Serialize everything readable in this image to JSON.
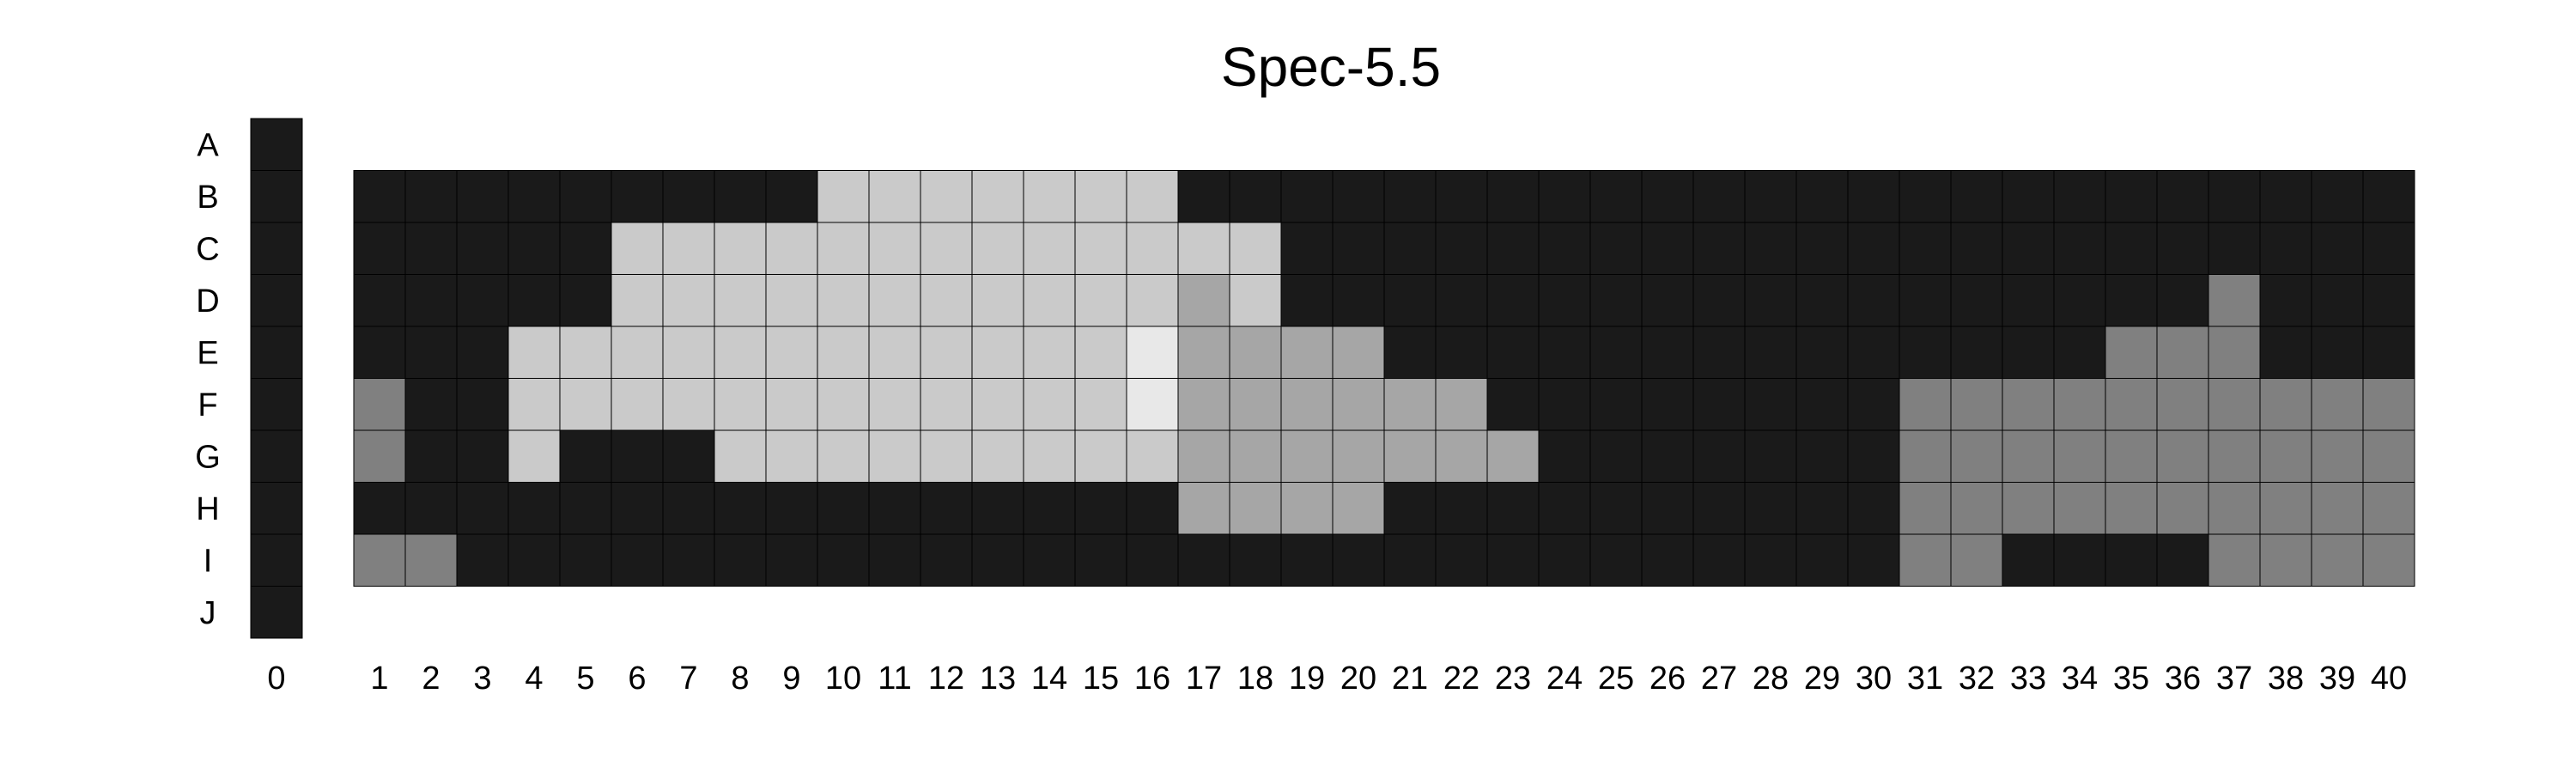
{
  "chart_data": {
    "type": "heatmap",
    "title": "Spec-5.5",
    "row_labels": [
      "A",
      "B",
      "C",
      "D",
      "E",
      "F",
      "G",
      "H",
      "I",
      "J"
    ],
    "index_column": {
      "label": "0",
      "rows": [
        "A",
        "B",
        "C",
        "D",
        "E",
        "F",
        "G",
        "H",
        "I",
        "J"
      ],
      "level": 0
    },
    "column_labels": [
      "1",
      "2",
      "3",
      "4",
      "5",
      "6",
      "7",
      "8",
      "9",
      "10",
      "11",
      "12",
      "13",
      "14",
      "15",
      "16",
      "17",
      "18",
      "19",
      "20",
      "21",
      "22",
      "23",
      "24",
      "25",
      "26",
      "27",
      "28",
      "29",
      "30",
      "31",
      "32",
      "33",
      "34",
      "35",
      "36",
      "37",
      "38",
      "39",
      "40"
    ],
    "grid_rows": [
      "B",
      "C",
      "D",
      "E",
      "F",
      "G",
      "H",
      "I"
    ],
    "levels": [
      [
        0,
        0,
        0,
        0,
        0,
        0,
        0,
        0,
        0,
        4,
        4,
        4,
        4,
        4,
        4,
        4,
        0,
        0,
        0,
        0,
        0,
        0,
        0,
        0,
        0,
        0,
        0,
        0,
        0,
        0,
        0,
        0,
        0,
        0,
        0,
        0,
        0,
        0,
        0,
        0
      ],
      [
        0,
        0,
        0,
        0,
        0,
        4,
        4,
        4,
        4,
        4,
        4,
        4,
        4,
        4,
        4,
        4,
        4,
        4,
        0,
        0,
        0,
        0,
        0,
        0,
        0,
        0,
        0,
        0,
        0,
        0,
        0,
        0,
        0,
        0,
        0,
        0,
        0,
        0,
        0,
        0
      ],
      [
        0,
        0,
        0,
        0,
        0,
        4,
        4,
        4,
        4,
        4,
        4,
        4,
        4,
        4,
        4,
        4,
        3,
        4,
        0,
        0,
        0,
        0,
        0,
        0,
        0,
        0,
        0,
        0,
        0,
        0,
        0,
        0,
        0,
        0,
        0,
        0,
        2,
        0,
        0,
        0
      ],
      [
        0,
        0,
        0,
        4,
        4,
        4,
        4,
        4,
        4,
        4,
        4,
        4,
        4,
        4,
        4,
        5,
        3,
        3,
        3,
        3,
        0,
        0,
        0,
        0,
        0,
        0,
        0,
        0,
        0,
        0,
        0,
        0,
        0,
        0,
        2,
        2,
        2,
        0,
        0,
        0
      ],
      [
        2,
        0,
        0,
        4,
        4,
        4,
        4,
        4,
        4,
        4,
        4,
        4,
        4,
        4,
        4,
        5,
        3,
        3,
        3,
        3,
        3,
        3,
        0,
        0,
        0,
        0,
        0,
        0,
        0,
        0,
        2,
        2,
        2,
        2,
        2,
        2,
        2,
        2,
        2,
        2
      ],
      [
        2,
        0,
        0,
        4,
        0,
        0,
        0,
        4,
        4,
        4,
        4,
        4,
        4,
        4,
        4,
        4,
        3,
        3,
        3,
        3,
        3,
        3,
        3,
        0,
        0,
        0,
        0,
        0,
        0,
        0,
        2,
        2,
        2,
        2,
        2,
        2,
        2,
        2,
        2,
        2
      ],
      [
        0,
        0,
        0,
        0,
        0,
        0,
        0,
        0,
        0,
        0,
        0,
        0,
        0,
        0,
        0,
        0,
        3,
        3,
        3,
        3,
        0,
        0,
        0,
        0,
        0,
        0,
        0,
        0,
        0,
        0,
        2,
        2,
        2,
        2,
        2,
        2,
        2,
        2,
        2,
        2
      ],
      [
        2,
        2,
        0,
        0,
        0,
        0,
        0,
        0,
        0,
        0,
        0,
        0,
        0,
        0,
        0,
        0,
        0,
        0,
        0,
        0,
        0,
        0,
        0,
        0,
        0,
        0,
        0,
        0,
        0,
        0,
        2,
        2,
        0,
        0,
        0,
        0,
        2,
        2,
        2,
        2
      ]
    ],
    "level_colors": [
      "#1a1a1a",
      "#4d4d4d",
      "#808080",
      "#a6a6a6",
      "#cacaca",
      "#e8e8e8"
    ],
    "grid": true,
    "legend": "none"
  }
}
